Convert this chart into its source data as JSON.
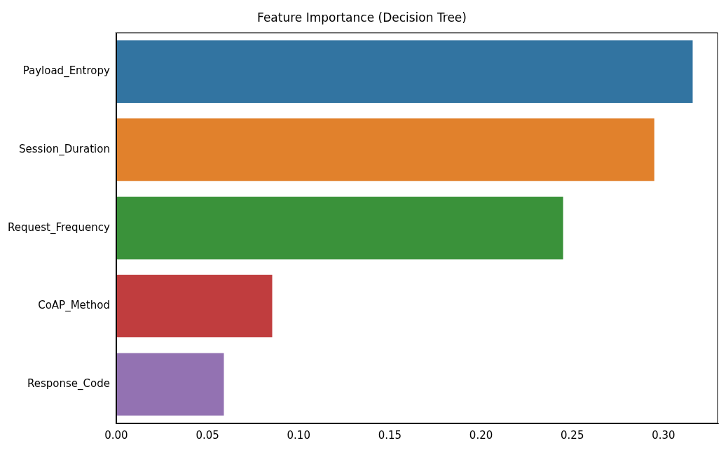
{
  "chart_data": {
    "type": "bar",
    "orientation": "horizontal",
    "title": "Feature Importance (Decision Tree)",
    "categories": [
      "Payload_Entropy",
      "Session_Duration",
      "Request_Frequency",
      "CoAP_Method",
      "Response_Code"
    ],
    "values": [
      0.316,
      0.295,
      0.245,
      0.0855,
      0.059
    ],
    "colors": [
      "#3274a1",
      "#e1812c",
      "#3a923a",
      "#c03d3e",
      "#9372b2"
    ],
    "xlim": [
      0,
      0.33
    ],
    "xticks": [
      {
        "value": 0,
        "label": "0.00"
      },
      {
        "value": 0.05,
        "label": "0.05"
      },
      {
        "value": 0.1,
        "label": "0.10"
      },
      {
        "value": 0.15,
        "label": "0.15"
      },
      {
        "value": 0.2,
        "label": "0.20"
      },
      {
        "value": 0.25,
        "label": "0.25"
      },
      {
        "value": 0.3,
        "label": "0.30"
      }
    ],
    "grid": false
  }
}
